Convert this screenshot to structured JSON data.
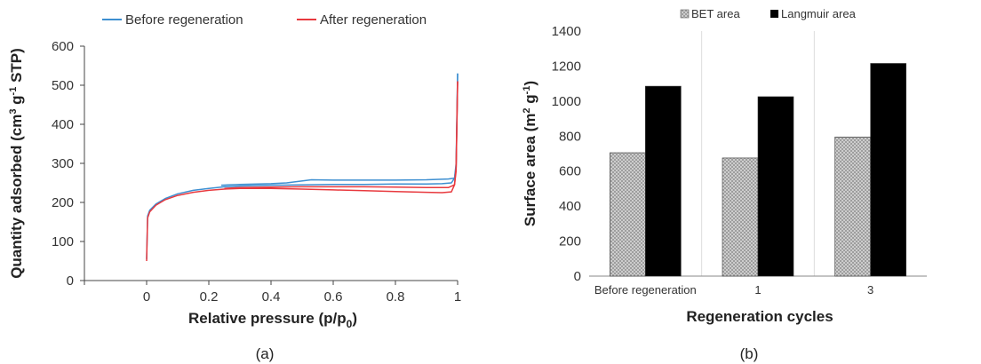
{
  "chart_data": [
    {
      "panel_label": "(a)",
      "type": "line",
      "xlabel": "Relative pressure (p/p",
      "xlabel_sub": "0",
      "xlabel_suffix": ")",
      "ylabel": "Quantity adsorbed (cm",
      "ylabel_sup": "3",
      "ylabel_mid": " g",
      "ylabel_sup2": "-1",
      "ylabel_suffix": " STP)",
      "xlim": [
        -0.2,
        1.0
      ],
      "ylim": [
        0,
        600
      ],
      "xticks": [
        0,
        0.2,
        0.4,
        0.6,
        0.8,
        1
      ],
      "xtick_labels": [
        "0",
        "0.2",
        "0.4",
        "0.6",
        "0.8",
        "1"
      ],
      "yticks": [
        0,
        100,
        200,
        300,
        400,
        500,
        600
      ],
      "legend_position": "top",
      "series": [
        {
          "name": "Before regeneration",
          "color": "#3d8fd1",
          "adsorption": [
            [
              0,
              55
            ],
            [
              0.003,
              165
            ],
            [
              0.01,
              180
            ],
            [
              0.03,
              196
            ],
            [
              0.06,
              210
            ],
            [
              0.1,
              222
            ],
            [
              0.15,
              231
            ],
            [
              0.2,
              236
            ],
            [
              0.25,
              240
            ],
            [
              0.3,
              242
            ],
            [
              0.4,
              244
            ],
            [
              0.5,
              245
            ],
            [
              0.6,
              246
            ],
            [
              0.7,
              246
            ],
            [
              0.8,
              247
            ],
            [
              0.9,
              247
            ],
            [
              0.95,
              248
            ],
            [
              0.98,
              250
            ],
            [
              0.99,
              262
            ],
            [
              0.995,
              300
            ],
            [
              1.0,
              530
            ]
          ],
          "desorption": [
            [
              1.0,
              530
            ],
            [
              0.995,
              290
            ],
            [
              0.99,
              262
            ],
            [
              0.97,
              260
            ],
            [
              0.9,
              258
            ],
            [
              0.8,
              257
            ],
            [
              0.7,
              257
            ],
            [
              0.6,
              257
            ],
            [
              0.53,
              258
            ],
            [
              0.45,
              250
            ],
            [
              0.4,
              248
            ],
            [
              0.3,
              246
            ],
            [
              0.24,
              244
            ]
          ]
        },
        {
          "name": "After regeneration",
          "color": "#e8393e",
          "adsorption": [
            [
              0,
              50
            ],
            [
              0.003,
              160
            ],
            [
              0.01,
              176
            ],
            [
              0.03,
              193
            ],
            [
              0.06,
              207
            ],
            [
              0.1,
              218
            ],
            [
              0.15,
              226
            ],
            [
              0.2,
              231
            ],
            [
              0.25,
              234
            ],
            [
              0.3,
              236
            ],
            [
              0.4,
              236
            ],
            [
              0.5,
              234
            ],
            [
              0.6,
              232
            ],
            [
              0.7,
              230
            ],
            [
              0.8,
              228
            ],
            [
              0.9,
              226
            ],
            [
              0.95,
              225
            ],
            [
              0.98,
              227
            ],
            [
              0.99,
              245
            ],
            [
              0.995,
              290
            ],
            [
              1.0,
              510
            ]
          ],
          "desorption": [
            [
              1.0,
              510
            ],
            [
              0.995,
              280
            ],
            [
              0.99,
              245
            ],
            [
              0.97,
              238
            ],
            [
              0.9,
              238
            ],
            [
              0.8,
              239
            ],
            [
              0.7,
              240
            ],
            [
              0.6,
              240
            ],
            [
              0.5,
              240
            ],
            [
              0.4,
              239
            ],
            [
              0.3,
              238
            ],
            [
              0.25,
              236
            ]
          ]
        }
      ]
    },
    {
      "panel_label": "(b)",
      "type": "bar",
      "xlabel": "Regeneration cycles",
      "ylabel": "Surface area (m",
      "ylabel_sup": "2",
      "ylabel_mid": " g",
      "ylabel_sup2": "-1",
      "ylabel_suffix": ")",
      "categories": [
        "Before regeneration",
        "1",
        "3"
      ],
      "ylim": [
        0,
        1400
      ],
      "yticks": [
        0,
        200,
        400,
        600,
        800,
        1000,
        1200,
        1400
      ],
      "legend_position": "top",
      "series": [
        {
          "name": "BET area",
          "color": "#c8c8c8",
          "pattern": "crosshatch",
          "values": [
            705,
            675,
            795
          ]
        },
        {
          "name": "Langmuir area",
          "color": "#000000",
          "values": [
            1085,
            1025,
            1215
          ]
        }
      ]
    }
  ]
}
